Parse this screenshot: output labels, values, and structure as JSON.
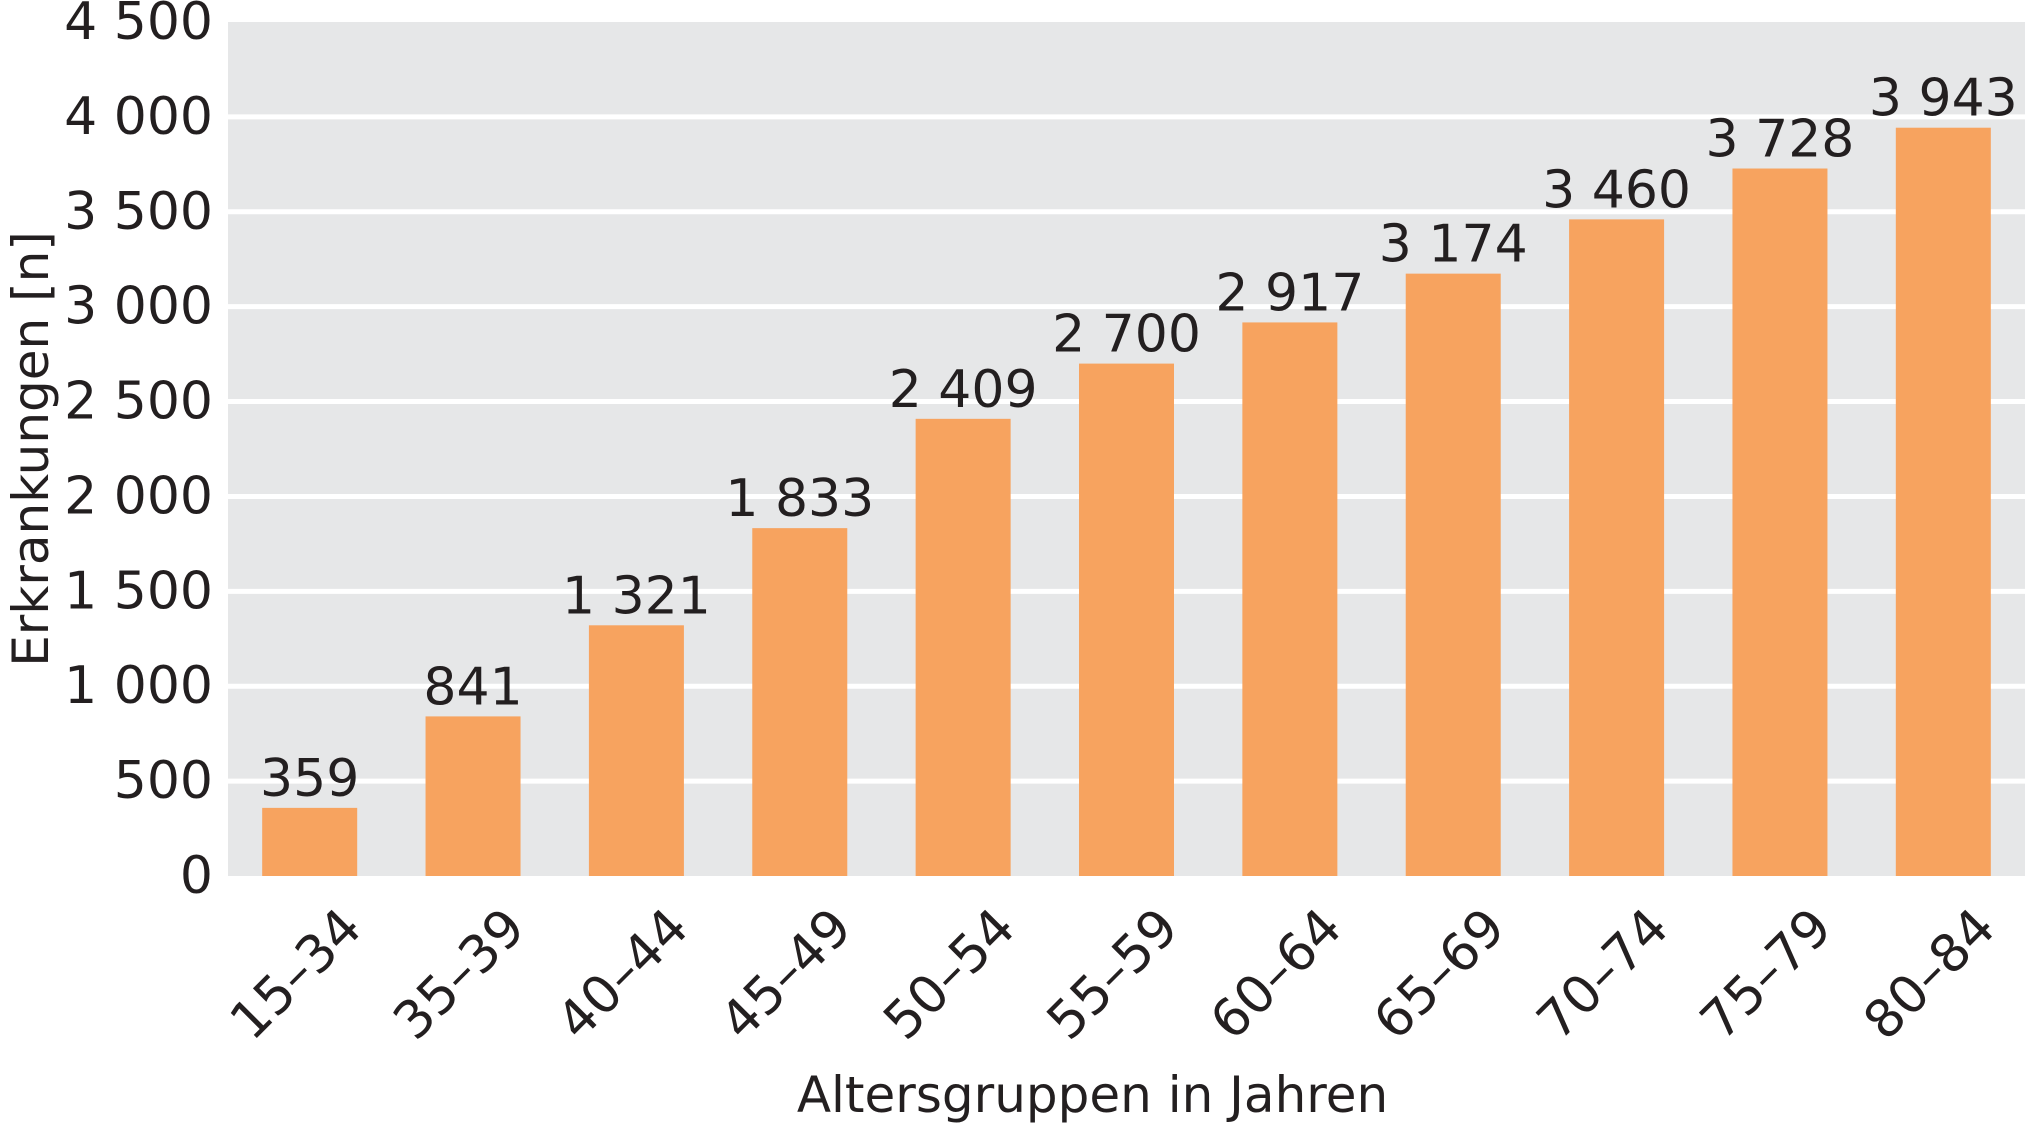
{
  "chart_data": {
    "type": "bar",
    "title": "",
    "xlabel": "Altersgruppen in Jahren",
    "ylabel": "Erkrankungen [n]",
    "categories": [
      "15–34",
      "35–39",
      "40–44",
      "45–49",
      "50–54",
      "55–59",
      "60–64",
      "65–69",
      "70–74",
      "75–79",
      "80–84"
    ],
    "values": [
      359,
      841,
      1321,
      1833,
      2409,
      2700,
      2917,
      3174,
      3460,
      3728,
      3943
    ],
    "value_labels": [
      "359",
      "841",
      "1 321",
      "1 833",
      "2 409",
      "2 700",
      "2 917",
      "3 174",
      "3 460",
      "3 728",
      "3 943"
    ],
    "ylim": [
      0,
      4500
    ],
    "yticks": [
      0,
      500,
      1000,
      1500,
      2000,
      2500,
      3000,
      3500,
      4000,
      4500
    ],
    "ytick_labels": [
      "0",
      "500",
      "1 000",
      "1 500",
      "2 000",
      "2 500",
      "3 000",
      "3 500",
      "4 000",
      "4 500"
    ],
    "grid": true,
    "legend": "none",
    "colors": {
      "bar": "#f7a35f",
      "plot_background": "#e6e7e8",
      "gridline": "#ffffff",
      "text": "#231f20"
    }
  }
}
